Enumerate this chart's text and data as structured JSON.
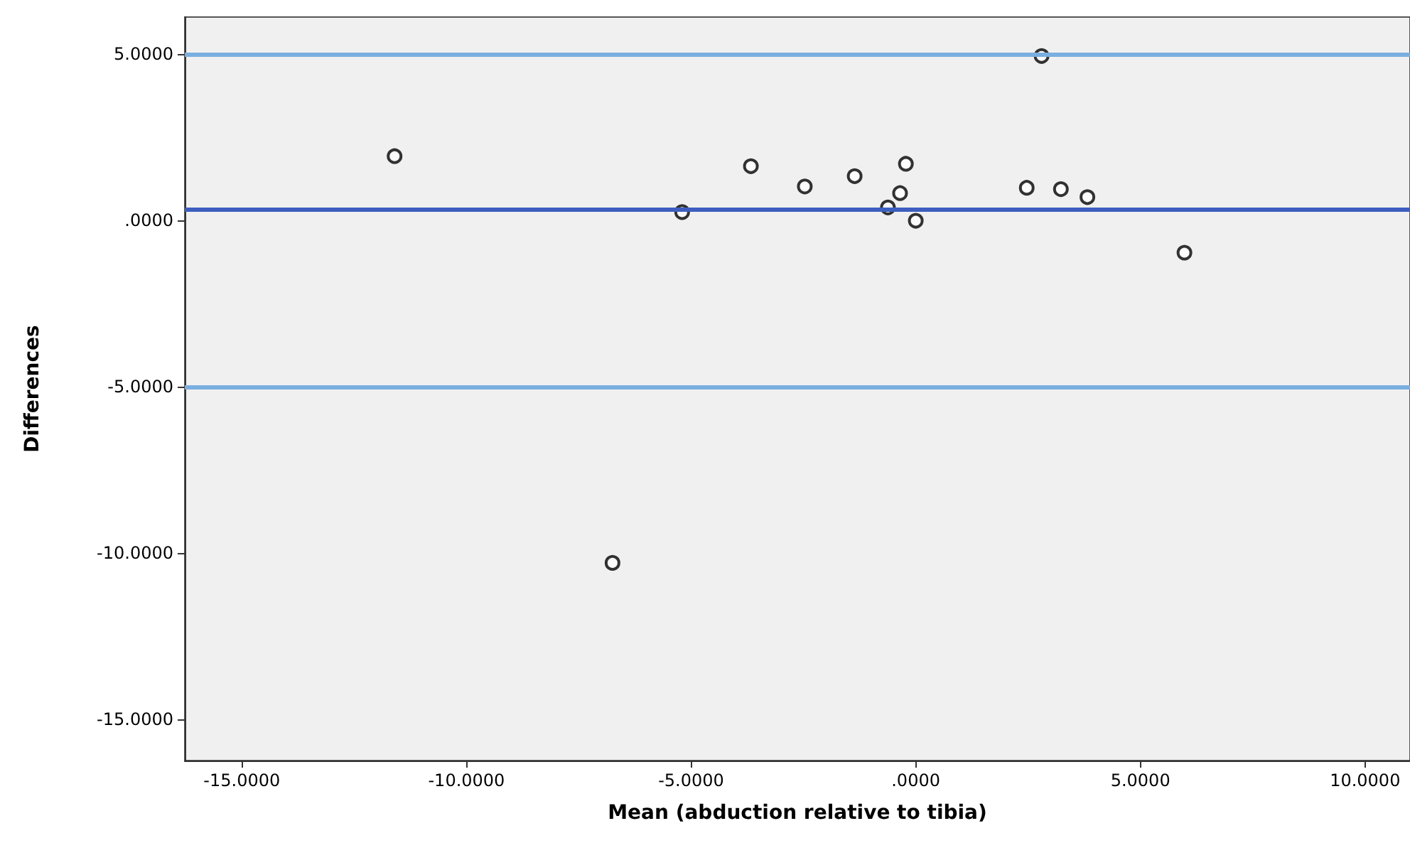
{
  "chart_data": {
    "type": "scatter",
    "xlabel": "Mean (abduction relative to tibia)",
    "ylabel": "Differences",
    "x": [
      -11.6,
      -6.75,
      -5.2,
      -3.67,
      -2.47,
      -1.36,
      -0.22,
      -0.35,
      -0.62,
      0.0,
      2.47,
      2.8,
      3.23,
      3.82,
      5.98
    ],
    "values": [
      1.92,
      -10.3,
      0.24,
      1.62,
      1.01,
      1.32,
      1.69,
      0.81,
      0.38,
      -0.02,
      0.97,
      4.93,
      0.93,
      0.69,
      -0.98
    ],
    "color": "#000000",
    "marker": "circle",
    "xlim": [
      -16.27,
      11.0
    ],
    "ylim": [
      -16.24,
      6.1
    ],
    "xticks": [
      {
        "value": -15,
        "label": "-15.0000"
      },
      {
        "value": -10,
        "label": "-10.0000"
      },
      {
        "value": -5,
        "label": "-5.0000"
      },
      {
        "value": 0,
        "label": ".0000"
      },
      {
        "value": 5,
        "label": "5.0000"
      },
      {
        "value": 10,
        "label": "10.0000"
      }
    ],
    "yticks": [
      {
        "value": -15,
        "label": "-15.0000"
      },
      {
        "value": -10,
        "label": "-10.0000"
      },
      {
        "value": -5,
        "label": "-5.0000"
      },
      {
        "value": 0,
        "label": ".0000"
      },
      {
        "value": 5,
        "label": "5.0000"
      }
    ],
    "ref_lines": [
      {
        "axis": "y",
        "value": 5.0,
        "color": "#7aaee0"
      },
      {
        "axis": "y",
        "value": 0.34,
        "color": "#3c5fbf"
      },
      {
        "axis": "y",
        "value": -5.0,
        "color": "#7aaee0"
      }
    ],
    "grid": false
  }
}
